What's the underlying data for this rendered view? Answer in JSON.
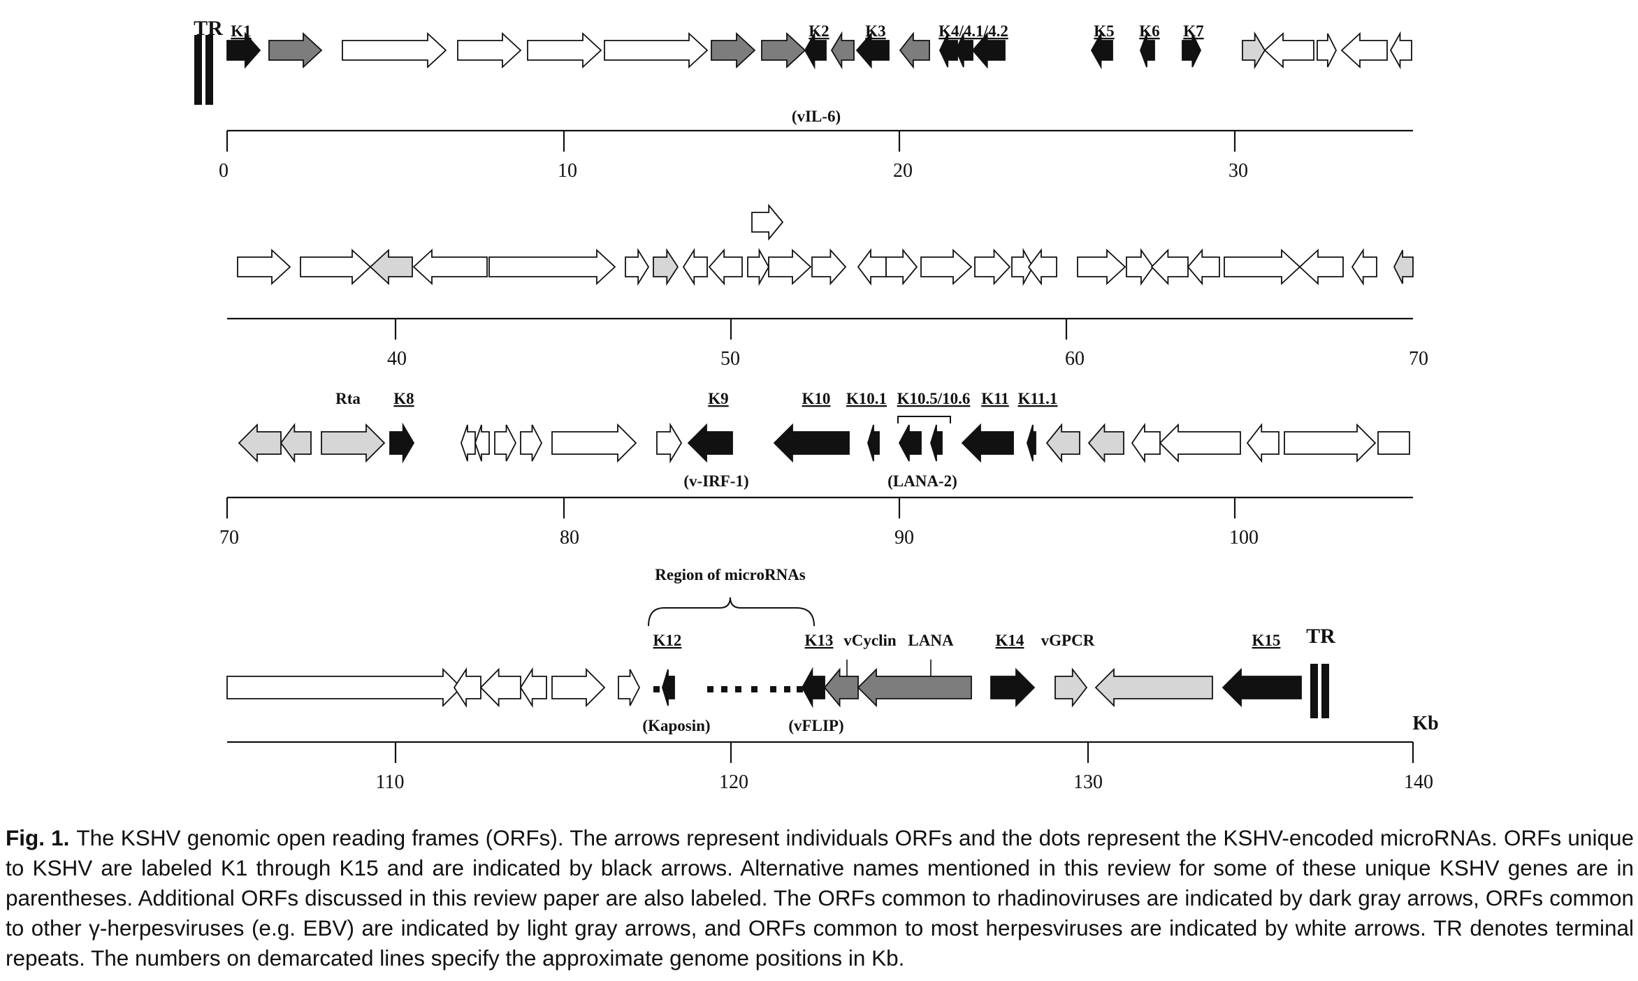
{
  "colors": {
    "unique_kshv": "#111111",
    "rhadinovirus": "#7d7d7d",
    "gamma_herpes": "#d6d6d6",
    "herpes_common": "#ffffff",
    "outline": "#111111"
  },
  "tr_label": "TR",
  "kb_label": "Kb",
  "rows": [
    {
      "ticks": [
        "0",
        "10",
        "20",
        "30"
      ],
      "labels": [
        "K1",
        "K2",
        "K3",
        "K4/4.1/4.2",
        "K5",
        "K6",
        "K7",
        "(vIL-6)"
      ]
    },
    {
      "ticks": [
        "40",
        "50",
        "60",
        "70"
      ],
      "labels": []
    },
    {
      "ticks": [
        "70",
        "80",
        "90",
        "100"
      ],
      "labels": [
        "Rta",
        "K8",
        "K9",
        "K10",
        "K10.1",
        "K10.5/10.6",
        "K11",
        "K11.1",
        "(v-IRF-1)",
        "(LANA-2)"
      ]
    },
    {
      "ticks": [
        "110",
        "120",
        "130",
        "140"
      ],
      "labels": [
        "Region of microRNAs",
        "K12",
        "K13",
        "vCyclin",
        "LANA",
        "K14",
        "vGPCR",
        "K15",
        "(Kaposin)",
        "(vFLIP)"
      ]
    }
  ],
  "caption": {
    "label": "Fig. 1.",
    "text": "The KSHV genomic open reading frames (ORFs). The arrows represent individuals ORFs and the dots represent the KSHV-encoded microRNAs. ORFs unique to KSHV are labeled K1 through K15 and are indicated by black arrows. Alternative names mentioned in this review for some of these unique KSHV genes are in parentheses. Additional ORFs discussed in this review paper are also labeled. The ORFs common to rhadinoviruses are indicated by dark gray arrows, ORFs common to other γ-herpesviruses (e.g. EBV) are indicated by light gray arrows, and ORFs common to most herpesviruses are indicated by white arrows. TR denotes terminal repeats. The numbers on demarcated lines specify the approximate genome positions in Kb."
  }
}
